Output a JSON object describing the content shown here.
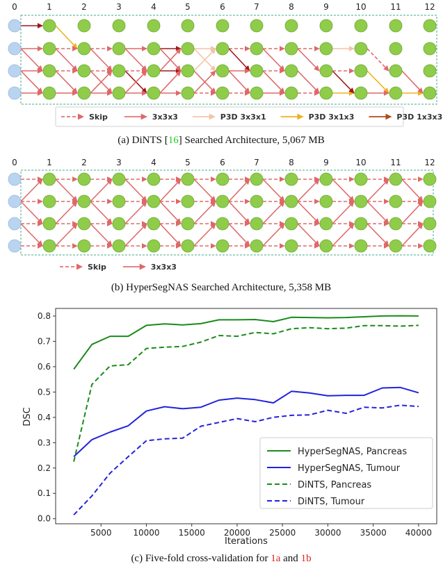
{
  "panel_a": {
    "column_labels": [
      "0",
      "1",
      "2",
      "3",
      "4",
      "5",
      "6",
      "7",
      "8",
      "9",
      "10",
      "11",
      "12"
    ],
    "legend": [
      {
        "label": "Skip",
        "color": "#e57373",
        "dashed": true
      },
      {
        "label": "3x3x3",
        "color": "#e57373",
        "dashed": false
      },
      {
        "label": "P3D 3x3x1",
        "color": "#f2c4a8",
        "dashed": false
      },
      {
        "label": "P3D 3x1x3",
        "color": "#f0b020",
        "dashed": false
      },
      {
        "label": "P3D 1x3x3",
        "color": "#b24a1e",
        "dashed": false
      }
    ],
    "caption_prefix": "(a) DiNTS [",
    "caption_ref": "16",
    "caption_suffix": "] Searched Architecture, 5,067 MB"
  },
  "panel_b": {
    "column_labels": [
      "0",
      "1",
      "2",
      "3",
      "4",
      "5",
      "6",
      "7",
      "8",
      "9",
      "10",
      "11",
      "12"
    ],
    "legend": [
      {
        "label": "Skip",
        "color": "#e57373",
        "dashed": true
      },
      {
        "label": "3x3x3",
        "color": "#e57373",
        "dashed": false
      }
    ],
    "caption": "(b) HyperSegNAS Searched Architecture, 5,358 MB"
  },
  "panel_c": {
    "caption_prefix": "(c) Five-fold cross-validation for ",
    "caption_ref1": "1a",
    "caption_mid": " and ",
    "caption_ref2": "1b"
  },
  "colors": {
    "input_node": "#b8d4f0",
    "cell_node": "#8fcc4a",
    "ref_green": "#22cc22",
    "ref_red": "#dd2222"
  },
  "chart_data": {
    "type": "line",
    "xlabel": "Iterations",
    "ylabel": "DSC",
    "xlim": [
      0,
      42000
    ],
    "ylim": [
      -0.02,
      0.83
    ],
    "xticks": [
      5000,
      10000,
      15000,
      20000,
      25000,
      30000,
      35000,
      40000
    ],
    "xtick_labels": [
      "5000",
      "10000",
      "15000",
      "20000",
      "25000",
      "30000",
      "35000",
      "40000"
    ],
    "yticks": [
      0.0,
      0.1,
      0.2,
      0.3,
      0.4,
      0.5,
      0.6,
      0.7,
      0.8
    ],
    "ytick_labels": [
      "0.0",
      "0.1",
      "0.2",
      "0.3",
      "0.4",
      "0.5",
      "0.6",
      "0.7",
      "0.8"
    ],
    "legend_position": "lower-right",
    "x": [
      2000,
      4000,
      6000,
      8000,
      10000,
      12000,
      14000,
      16000,
      18000,
      20000,
      22000,
      24000,
      26000,
      28000,
      30000,
      32000,
      34000,
      36000,
      38000,
      40000
    ],
    "series": [
      {
        "name": "HyperSegNAS, Pancreas",
        "color": "#1a8a1a",
        "dash": "solid",
        "values": [
          0.59,
          0.688,
          0.72,
          0.72,
          0.763,
          0.769,
          0.765,
          0.77,
          0.785,
          0.785,
          0.786,
          0.778,
          0.795,
          0.794,
          0.793,
          0.794,
          0.797,
          0.8,
          0.801,
          0.8
        ]
      },
      {
        "name": "HyperSegNAS, Tumour",
        "color": "#2222dd",
        "dash": "solid",
        "values": [
          0.245,
          0.312,
          0.342,
          0.367,
          0.425,
          0.442,
          0.434,
          0.44,
          0.468,
          0.476,
          0.47,
          0.457,
          0.503,
          0.496,
          0.485,
          0.487,
          0.487,
          0.516,
          0.518,
          0.497
        ]
      },
      {
        "name": "DiNTS, Pancreas",
        "color": "#1a8a1a",
        "dash": "dashed",
        "values": [
          0.225,
          0.53,
          0.603,
          0.608,
          0.672,
          0.677,
          0.68,
          0.697,
          0.723,
          0.72,
          0.735,
          0.73,
          0.75,
          0.754,
          0.75,
          0.752,
          0.762,
          0.762,
          0.76,
          0.763
        ]
      },
      {
        "name": "DiNTS, Tumour",
        "color": "#2222dd",
        "dash": "dashed",
        "values": [
          0.015,
          0.09,
          0.18,
          0.245,
          0.308,
          0.315,
          0.318,
          0.365,
          0.38,
          0.395,
          0.383,
          0.4,
          0.408,
          0.41,
          0.428,
          0.416,
          0.44,
          0.437,
          0.448,
          0.443
        ]
      }
    ]
  }
}
